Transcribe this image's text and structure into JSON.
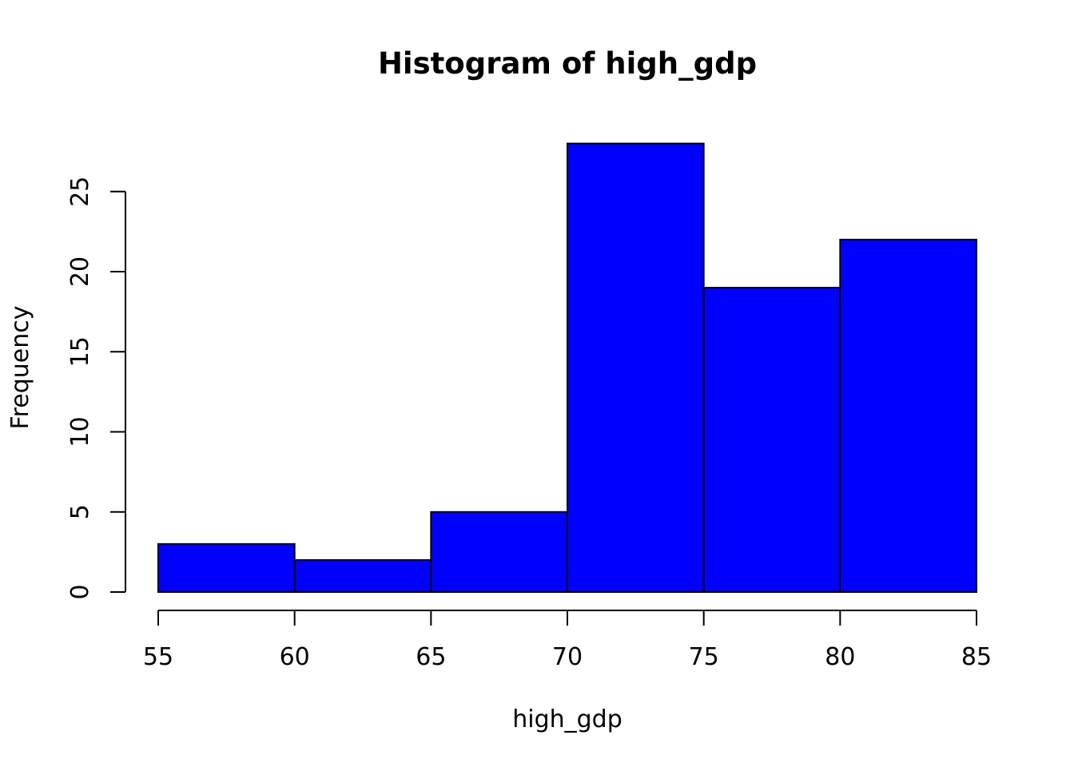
{
  "chart_data": {
    "type": "bar",
    "subtype": "histogram",
    "title": "Histogram of high_gdp",
    "xlabel": "high_gdp",
    "ylabel": "Frequency",
    "bins": [
      {
        "start": 55,
        "end": 60,
        "count": 3
      },
      {
        "start": 60,
        "end": 65,
        "count": 2
      },
      {
        "start": 65,
        "end": 70,
        "count": 5
      },
      {
        "start": 70,
        "end": 75,
        "count": 28
      },
      {
        "start": 75,
        "end": 80,
        "count": 19
      },
      {
        "start": 80,
        "end": 85,
        "count": 22
      }
    ],
    "x_ticks": [
      "55",
      "60",
      "65",
      "70",
      "75",
      "80",
      "85"
    ],
    "y_ticks": [
      "0",
      "5",
      "10",
      "15",
      "20",
      "25"
    ],
    "xlim": [
      55,
      85
    ],
    "ylim": [
      0,
      28
    ],
    "grid": false,
    "bar_color": "#0000ff",
    "border_color": "#000000"
  }
}
